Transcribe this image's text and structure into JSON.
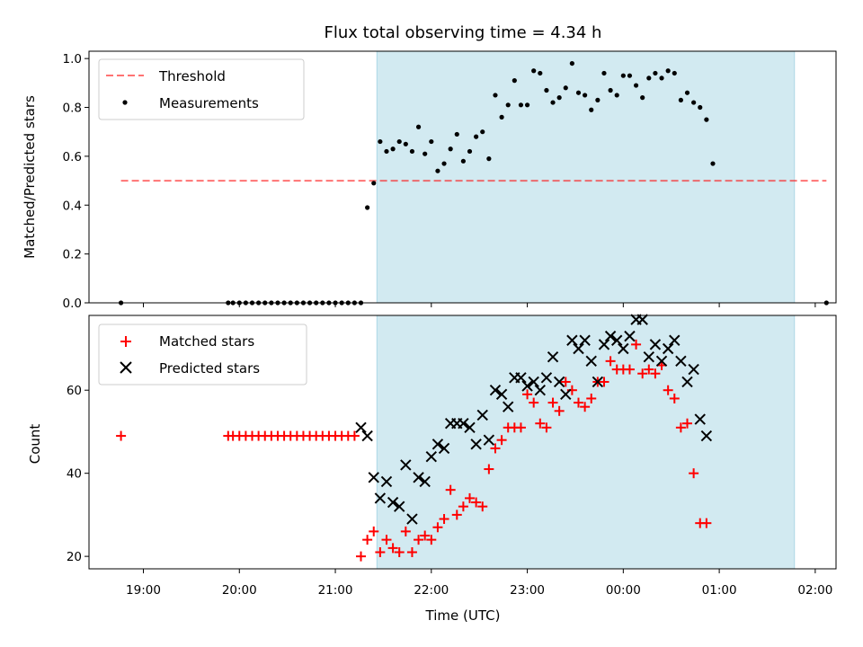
{
  "colors": {
    "shade": "#add8e6",
    "threshold": "#ff0000",
    "measurement": "#000000",
    "matched": "#ff0000",
    "predicted": "#000000"
  },
  "chart_data": [
    {
      "type": "scatter",
      "title": "Flux total observing time = 4.34 h",
      "xlabel": "",
      "ylabel": "Matched/Predicted stars",
      "xlim": [
        "18:26",
        "02:13"
      ],
      "ylim": [
        0,
        1.03
      ],
      "y_ticks": [
        "0.0",
        "0.2",
        "0.4",
        "0.6",
        "0.8",
        "1.0"
      ],
      "shaded_span": [
        "21:26",
        "01:47"
      ],
      "legend": {
        "position": "top-left",
        "entries": [
          "Threshold",
          "Measurements"
        ]
      },
      "threshold": {
        "name": "Threshold",
        "value": 0.5,
        "x_range": [
          "18:46",
          "02:07"
        ],
        "style": "dashed"
      },
      "series": [
        {
          "name": "Measurements",
          "points": [
            [
              "18:46",
              0.0
            ],
            [
              "19:53",
              0.0
            ],
            [
              "19:56",
              0.0
            ],
            [
              "20:00",
              0.0
            ],
            [
              "20:04",
              0.0
            ],
            [
              "20:08",
              0.0
            ],
            [
              "20:12",
              0.0
            ],
            [
              "20:16",
              0.0
            ],
            [
              "20:20",
              0.0
            ],
            [
              "20:24",
              0.0
            ],
            [
              "20:28",
              0.0
            ],
            [
              "20:32",
              0.0
            ],
            [
              "20:36",
              0.0
            ],
            [
              "20:40",
              0.0
            ],
            [
              "20:44",
              0.0
            ],
            [
              "20:48",
              0.0
            ],
            [
              "20:52",
              0.0
            ],
            [
              "20:56",
              0.0
            ],
            [
              "21:00",
              0.0
            ],
            [
              "21:04",
              0.0
            ],
            [
              "21:08",
              0.0
            ],
            [
              "21:12",
              0.0
            ],
            [
              "21:16",
              0.0
            ],
            [
              "21:20",
              0.39
            ],
            [
              "21:24",
              0.49
            ],
            [
              "21:28",
              0.66
            ],
            [
              "21:32",
              0.62
            ],
            [
              "21:36",
              0.63
            ],
            [
              "21:40",
              0.66
            ],
            [
              "21:44",
              0.65
            ],
            [
              "21:48",
              0.62
            ],
            [
              "21:52",
              0.72
            ],
            [
              "21:56",
              0.61
            ],
            [
              "22:00",
              0.66
            ],
            [
              "22:04",
              0.54
            ],
            [
              "22:08",
              0.57
            ],
            [
              "22:12",
              0.63
            ],
            [
              "22:16",
              0.69
            ],
            [
              "22:20",
              0.58
            ],
            [
              "22:24",
              0.62
            ],
            [
              "22:28",
              0.68
            ],
            [
              "22:32",
              0.7
            ],
            [
              "22:36",
              0.59
            ],
            [
              "22:40",
              0.85
            ],
            [
              "22:44",
              0.76
            ],
            [
              "22:48",
              0.81
            ],
            [
              "22:52",
              0.91
            ],
            [
              "22:56",
              0.81
            ],
            [
              "23:00",
              0.81
            ],
            [
              "23:04",
              0.95
            ],
            [
              "23:08",
              0.94
            ],
            [
              "23:12",
              0.87
            ],
            [
              "23:16",
              0.82
            ],
            [
              "23:20",
              0.84
            ],
            [
              "23:24",
              0.88
            ],
            [
              "23:28",
              0.98
            ],
            [
              "23:32",
              0.86
            ],
            [
              "23:36",
              0.85
            ],
            [
              "23:40",
              0.79
            ],
            [
              "23:44",
              0.83
            ],
            [
              "23:48",
              0.94
            ],
            [
              "23:52",
              0.87
            ],
            [
              "23:56",
              0.85
            ],
            [
              "00:00",
              0.93
            ],
            [
              "00:04",
              0.93
            ],
            [
              "00:08",
              0.89
            ],
            [
              "00:12",
              0.84
            ],
            [
              "00:16",
              0.92
            ],
            [
              "00:20",
              0.94
            ],
            [
              "00:24",
              0.92
            ],
            [
              "00:28",
              0.95
            ],
            [
              "00:32",
              0.94
            ],
            [
              "00:36",
              0.83
            ],
            [
              "00:40",
              0.86
            ],
            [
              "00:44",
              0.82
            ],
            [
              "00:48",
              0.8
            ],
            [
              "00:52",
              0.75
            ],
            [
              "00:56",
              0.57
            ],
            [
              "02:07",
              0.0
            ]
          ]
        }
      ]
    },
    {
      "type": "scatter",
      "title": "",
      "xlabel": "Time (UTC)",
      "ylabel": "Count",
      "xlim": [
        "18:26",
        "02:13"
      ],
      "ylim": [
        17,
        78
      ],
      "x_ticks": [
        "19:00",
        "20:00",
        "21:00",
        "22:00",
        "23:00",
        "00:00",
        "01:00",
        "02:00"
      ],
      "y_ticks": [
        "20",
        "40",
        "60"
      ],
      "shaded_span": [
        "21:26",
        "01:47"
      ],
      "legend": {
        "position": "top-left",
        "entries": [
          "Matched stars",
          "Predicted stars"
        ]
      },
      "series": [
        {
          "name": "Matched stars",
          "marker": "plus",
          "points": [
            [
              "18:46",
              49
            ],
            [
              "19:53",
              49
            ],
            [
              "19:56",
              49
            ],
            [
              "20:00",
              49
            ],
            [
              "20:04",
              49
            ],
            [
              "20:08",
              49
            ],
            [
              "20:12",
              49
            ],
            [
              "20:16",
              49
            ],
            [
              "20:20",
              49
            ],
            [
              "20:24",
              49
            ],
            [
              "20:28",
              49
            ],
            [
              "20:32",
              49
            ],
            [
              "20:36",
              49
            ],
            [
              "20:40",
              49
            ],
            [
              "20:44",
              49
            ],
            [
              "20:48",
              49
            ],
            [
              "20:52",
              49
            ],
            [
              "20:56",
              49
            ],
            [
              "21:00",
              49
            ],
            [
              "21:04",
              49
            ],
            [
              "21:08",
              49
            ],
            [
              "21:12",
              49
            ],
            [
              "21:16",
              20
            ],
            [
              "21:20",
              24
            ],
            [
              "21:24",
              26
            ],
            [
              "21:28",
              21
            ],
            [
              "21:32",
              24
            ],
            [
              "21:36",
              22
            ],
            [
              "21:40",
              21
            ],
            [
              "21:44",
              26
            ],
            [
              "21:48",
              21
            ],
            [
              "21:52",
              24
            ],
            [
              "21:56",
              25
            ],
            [
              "22:00",
              24
            ],
            [
              "22:04",
              27
            ],
            [
              "22:08",
              29
            ],
            [
              "22:12",
              36
            ],
            [
              "22:16",
              30
            ],
            [
              "22:20",
              32
            ],
            [
              "22:24",
              34
            ],
            [
              "22:28",
              33
            ],
            [
              "22:32",
              32
            ],
            [
              "22:36",
              41
            ],
            [
              "22:40",
              46
            ],
            [
              "22:44",
              48
            ],
            [
              "22:48",
              51
            ],
            [
              "22:52",
              51
            ],
            [
              "22:56",
              51
            ],
            [
              "23:00",
              59
            ],
            [
              "23:04",
              57
            ],
            [
              "23:08",
              52
            ],
            [
              "23:12",
              51
            ],
            [
              "23:16",
              57
            ],
            [
              "23:20",
              55
            ],
            [
              "23:24",
              62
            ],
            [
              "23:28",
              60
            ],
            [
              "23:32",
              57
            ],
            [
              "23:36",
              56
            ],
            [
              "23:40",
              58
            ],
            [
              "23:44",
              62
            ],
            [
              "23:48",
              62
            ],
            [
              "23:52",
              67
            ],
            [
              "23:56",
              65
            ],
            [
              "00:00",
              65
            ],
            [
              "00:04",
              65
            ],
            [
              "00:08",
              71
            ],
            [
              "00:12",
              64
            ],
            [
              "00:16",
              65
            ],
            [
              "00:20",
              64
            ],
            [
              "00:24",
              66
            ],
            [
              "00:28",
              60
            ],
            [
              "00:32",
              58
            ],
            [
              "00:36",
              51
            ],
            [
              "00:40",
              52
            ],
            [
              "00:44",
              40
            ],
            [
              "00:48",
              28
            ],
            [
              "00:52",
              28
            ]
          ]
        },
        {
          "name": "Predicted stars",
          "marker": "x",
          "points": [
            [
              "21:16",
              51
            ],
            [
              "21:20",
              49
            ],
            [
              "21:24",
              39
            ],
            [
              "21:28",
              34
            ],
            [
              "21:32",
              38
            ],
            [
              "21:36",
              33
            ],
            [
              "21:40",
              32
            ],
            [
              "21:44",
              42
            ],
            [
              "21:48",
              29
            ],
            [
              "21:52",
              39
            ],
            [
              "21:56",
              38
            ],
            [
              "22:00",
              44
            ],
            [
              "22:04",
              47
            ],
            [
              "22:08",
              46
            ],
            [
              "22:12",
              52
            ],
            [
              "22:16",
              52
            ],
            [
              "22:20",
              52
            ],
            [
              "22:24",
              51
            ],
            [
              "22:28",
              47
            ],
            [
              "22:32",
              54
            ],
            [
              "22:36",
              48
            ],
            [
              "22:40",
              60
            ],
            [
              "22:44",
              59
            ],
            [
              "22:48",
              56
            ],
            [
              "22:52",
              63
            ],
            [
              "22:56",
              63
            ],
            [
              "23:00",
              61
            ],
            [
              "23:04",
              62
            ],
            [
              "23:08",
              60
            ],
            [
              "23:12",
              63
            ],
            [
              "23:16",
              68
            ],
            [
              "23:20",
              62
            ],
            [
              "23:24",
              59
            ],
            [
              "23:28",
              72
            ],
            [
              "23:32",
              70
            ],
            [
              "23:36",
              72
            ],
            [
              "23:40",
              67
            ],
            [
              "23:44",
              62
            ],
            [
              "23:48",
              71
            ],
            [
              "23:52",
              73
            ],
            [
              "23:56",
              72
            ],
            [
              "00:00",
              70
            ],
            [
              "00:04",
              73
            ],
            [
              "00:08",
              77
            ],
            [
              "00:12",
              77
            ],
            [
              "00:16",
              68
            ],
            [
              "00:20",
              71
            ],
            [
              "00:24",
              67
            ],
            [
              "00:28",
              70
            ],
            [
              "00:32",
              72
            ],
            [
              "00:36",
              67
            ],
            [
              "00:40",
              62
            ],
            [
              "00:44",
              65
            ],
            [
              "00:48",
              53
            ],
            [
              "00:52",
              49
            ]
          ]
        }
      ]
    }
  ]
}
